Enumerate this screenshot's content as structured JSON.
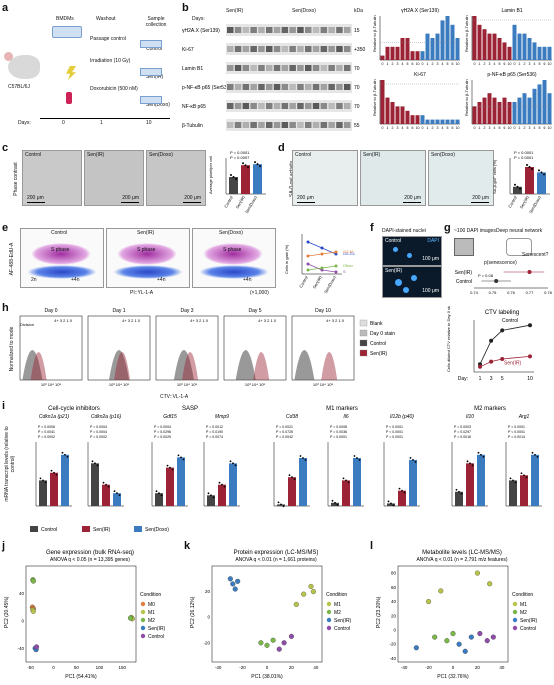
{
  "colors": {
    "control": "#444444",
    "sen_ir": "#9b2335",
    "sen_doxo": "#3b7bbf",
    "green": "#7ab648",
    "purple": "#8e4ea8"
  },
  "panel_labels": [
    "a",
    "b",
    "c",
    "d",
    "e",
    "f",
    "g",
    "h",
    "i",
    "j",
    "k",
    "l"
  ],
  "a": {
    "bmdm": "BMDMs",
    "washout": "Washout",
    "sample": "Sample collection",
    "passage": "Passage control",
    "control": "Control",
    "irr": "Irradiation (10 Gy)",
    "sen_ir": "Sen(IR)",
    "doxo": "Doxorubicin (500 nM)",
    "sen_doxo": "Sen(Doxo)",
    "days": "Days:",
    "d0": "0",
    "d1": "1",
    "d10": "10",
    "mouse": "C57BL/6J"
  },
  "b": {
    "days": "Days:",
    "kda": "kDa",
    "groups": [
      "Sen(IR)",
      "Sen(Doxo)"
    ],
    "day_labels": [
      "0",
      "1",
      "2",
      "3",
      "4",
      "5",
      "6",
      "10",
      "0",
      "1",
      "2",
      "3",
      "4",
      "5",
      "6",
      "10"
    ],
    "proteins": [
      "γH2A.X (Ser139)",
      "Ki-67",
      "Lamin B1",
      "p-NF-κB p65 (Ser536)",
      "NF-κB p65",
      "β-Tubulin"
    ],
    "kda_vals": [
      "15",
      "+350",
      "70",
      "70",
      "70",
      "55"
    ],
    "bar_titles": [
      "γH2A.X (Ser139)",
      "Lamin B1",
      "Ki-67",
      "p-NF-κB p65 (Ser536)"
    ],
    "y_label": "Relative to β-Tubulin",
    "xticks": [
      "0",
      "1",
      "2",
      "3",
      "4",
      "5",
      "6",
      "10",
      "0",
      "1",
      "2",
      "3",
      "4",
      "5",
      "6",
      "10"
    ],
    "h2ax_ir": [
      0.1,
      0.3,
      0.3,
      0.3,
      0.5,
      0.5,
      0.2,
      0.2
    ],
    "h2ax_dx": [
      0.2,
      0.6,
      0.5,
      0.6,
      0.9,
      1.0,
      0.8,
      0.5
    ],
    "lamin_ir": [
      1.0,
      0.8,
      0.7,
      0.6,
      0.6,
      0.5,
      0.4,
      0.3
    ],
    "lamin_dx": [
      0.8,
      0.6,
      0.6,
      0.5,
      0.4,
      0.3,
      0.3,
      0.3
    ],
    "ki67_ir": [
      1.0,
      0.6,
      0.5,
      0.4,
      0.4,
      0.3,
      0.2,
      0.2
    ],
    "ki67_dx": [
      0.2,
      0.1,
      0.1,
      0.1,
      0.1,
      0.1,
      0.1,
      0.1
    ],
    "pnf_ir": [
      0.4,
      0.5,
      0.6,
      0.7,
      0.6,
      0.5,
      0.6,
      0.5
    ],
    "pnf_dx": [
      0.5,
      0.6,
      0.7,
      0.6,
      0.8,
      0.9,
      1.0,
      0.7
    ]
  },
  "c": {
    "side": "Phase contrast",
    "imgs": [
      "Control",
      "Sen(IR)",
      "Sen(Doxo)"
    ],
    "sb": [
      "200 μm",
      "200 μm",
      "200 μm"
    ],
    "ylabel": "Average pixel/per cell",
    "p1": "P = 0.0001",
    "p2": "P = 0.0007",
    "x": [
      "Control",
      "Sen(IR)",
      "Sen(Doxo)"
    ],
    "vals": [
      3.3,
      5.6,
      5.8
    ]
  },
  "d": {
    "side": "SA-β-gal activity",
    "imgs": [
      "Control",
      "Sen(IR)",
      "Sen(Doxo)"
    ],
    "sb": [
      "200 μm",
      "200 μm",
      "200 μm"
    ],
    "ylabel": "SA-β-gal⁺ cells (%)",
    "p1": "P < 0.0001",
    "p2": "P = 0.0001",
    "x": [
      "Control",
      "Sen(IR)",
      "Sen(Doxo)"
    ],
    "vals": [
      20,
      75,
      60
    ]
  },
  "e": {
    "ylabel": "AF-488-EdU-A",
    "xlabel": "PI::YL-1-A",
    "imgs": [
      "Control",
      "Sen(IR)",
      "Sen(Doxo)"
    ],
    "s_phase": "S phase",
    "g1": "2n",
    "g2": "+4n",
    "x1k": "(×1,000)",
    "y2": "Cells in gate (%)",
    "cyc": [
      "G0-G1",
      "S",
      "G2-M",
      "Other"
    ],
    "x": [
      "Control",
      "Sen(IR)",
      "Sen(Doxo)"
    ]
  },
  "f": {
    "title": "DAPI-stained nuclei",
    "legend": "DAPI",
    "imgs": [
      "Control",
      "Sen(IR)"
    ],
    "sb": "100 μm"
  },
  "g": {
    "t1": "~100 DAPI images",
    "t2": "Deep neural network",
    "q": "Senescent?",
    "xlabel": "p(senescence)",
    "rows": [
      "Sen(IR)",
      "Control"
    ],
    "p": "P = 0.08",
    "xt": [
      "0.74",
      "0.75",
      "0.76",
      "0.77",
      "0.78"
    ]
  },
  "h": {
    "ylabel": "Normalized to mode",
    "xlabel": "CTV::VL-1-A",
    "days": [
      "Day 0",
      "Day 1",
      "Day 3",
      "Day 5",
      "Day 10"
    ],
    "div": "Division",
    "legend": [
      "Blank",
      "Day 0 stain",
      "Control",
      "Sen(IR)"
    ],
    "ctv_title": "CTV labeling",
    "ctv_y": "Cells diluted CTV relative to Day 0 stain (%)",
    "ctv_day": "Day:",
    "ctv_x": [
      "1",
      "3",
      "5",
      "10"
    ],
    "ctv_ctrl": "Control",
    "ctv_sen": "Sen(IR)",
    "ctrl_vals": [
      15,
      60,
      80,
      90
    ],
    "sen_vals": [
      10,
      20,
      25,
      30
    ]
  },
  "i": {
    "groups": [
      "Cell-cycle inhibitors",
      "SASP",
      "M1 markers",
      "M2 markers"
    ],
    "genes": [
      "Cdkn1a (p21)",
      "Cdkn2a (p16)",
      "Gdf15",
      "Mmp9",
      "Cd38",
      "Il6",
      "Il12b (p40)",
      "Il10",
      "Arg1"
    ],
    "ylabel": "mRNA transcript levels (relative to control)",
    "pvals": [
      [
        "P < 0.0006",
        "P = 0.0041",
        "P = 0.0002"
      ],
      [
        "P = 0.0004",
        "P = 0.0004",
        "P = 0.0002"
      ],
      [
        "P = 0.0004",
        "P = 0.0296",
        "P = 0.0029"
      ],
      [
        "P = 0.0012",
        "P = 0.0190",
        "P = 0.0074"
      ],
      [
        "P = 0.0021",
        "P = 0.0725",
        "P = 0.0042"
      ],
      [
        "P = 0.0008",
        "P = 0.0036",
        "P = 0.0001"
      ],
      [
        "P < 0.0001",
        "P < 0.0001",
        "P = 0.0001"
      ],
      [
        "P = 0.0003",
        "P = 0.0297",
        "P = 0.0016"
      ],
      [
        "P = 0.0001",
        "P < 0.0001",
        "P = 0.0014"
      ]
    ],
    "legend": [
      "Control",
      "Sen(IR)",
      "Sen(Doxo)"
    ],
    "vals": [
      [
        1,
        1.3,
        2.0
      ],
      [
        1,
        0.5,
        0.3
      ],
      [
        1,
        3.0,
        3.8
      ],
      [
        1,
        2.0,
        4.0
      ],
      [
        1,
        18,
        30
      ],
      [
        1,
        8,
        15
      ],
      [
        1,
        6,
        18
      ],
      [
        1,
        3,
        3.6
      ],
      [
        1,
        1.2,
        2.0
      ]
    ],
    "ymax": [
      2.5,
      1.5,
      5,
      6,
      40,
      20,
      25,
      4.5,
      2.5
    ]
  },
  "j": {
    "title": "Gene expression (bulk RNA-seq)",
    "sub": "ANOVA q < 0.05 (n = 13,395 genes)",
    "xlabel": "PC1 (54.41%)",
    "ylabel": "PC2 (20.45%)",
    "xt": [
      "-50",
      "0",
      "50",
      "100",
      "150"
    ],
    "yt": [
      "-40",
      "0",
      "40"
    ],
    "legend_title": "Condition",
    "legend": [
      "M0",
      "M1",
      "M2",
      "Sen(IR)",
      "Control"
    ]
  },
  "k": {
    "title": "Protein expression (LC-MS/MS)",
    "sub": "ANOVA q < 0.01 (n = 1,661 proteins)",
    "xlabel": "PC1 (38.01%)",
    "ylabel": "PC2 (26.12%)",
    "xt": [
      "-40",
      "-20",
      "0",
      "20",
      "40"
    ],
    "yt": [
      "-20",
      "0",
      "20"
    ],
    "legend_title": "Condition",
    "legend": [
      "M1",
      "M2",
      "Sen(IR)",
      "Control"
    ]
  },
  "l": {
    "title": "Metabolite levels (LC-MS/MS)",
    "sub": "ANOVA q < 0.01 (n = 2,791 m/z features)",
    "xlabel": "PC1 (32.76%)",
    "ylabel": "PC2 (23.20%)",
    "xt": [
      "-40",
      "-20",
      "0",
      "20",
      "40"
    ],
    "yt": [
      "-40",
      "-20",
      "0",
      "20",
      "40",
      "60",
      "80"
    ],
    "legend_title": "Condition",
    "legend": [
      "M1",
      "M2",
      "Sen(IR)",
      "Control"
    ]
  }
}
